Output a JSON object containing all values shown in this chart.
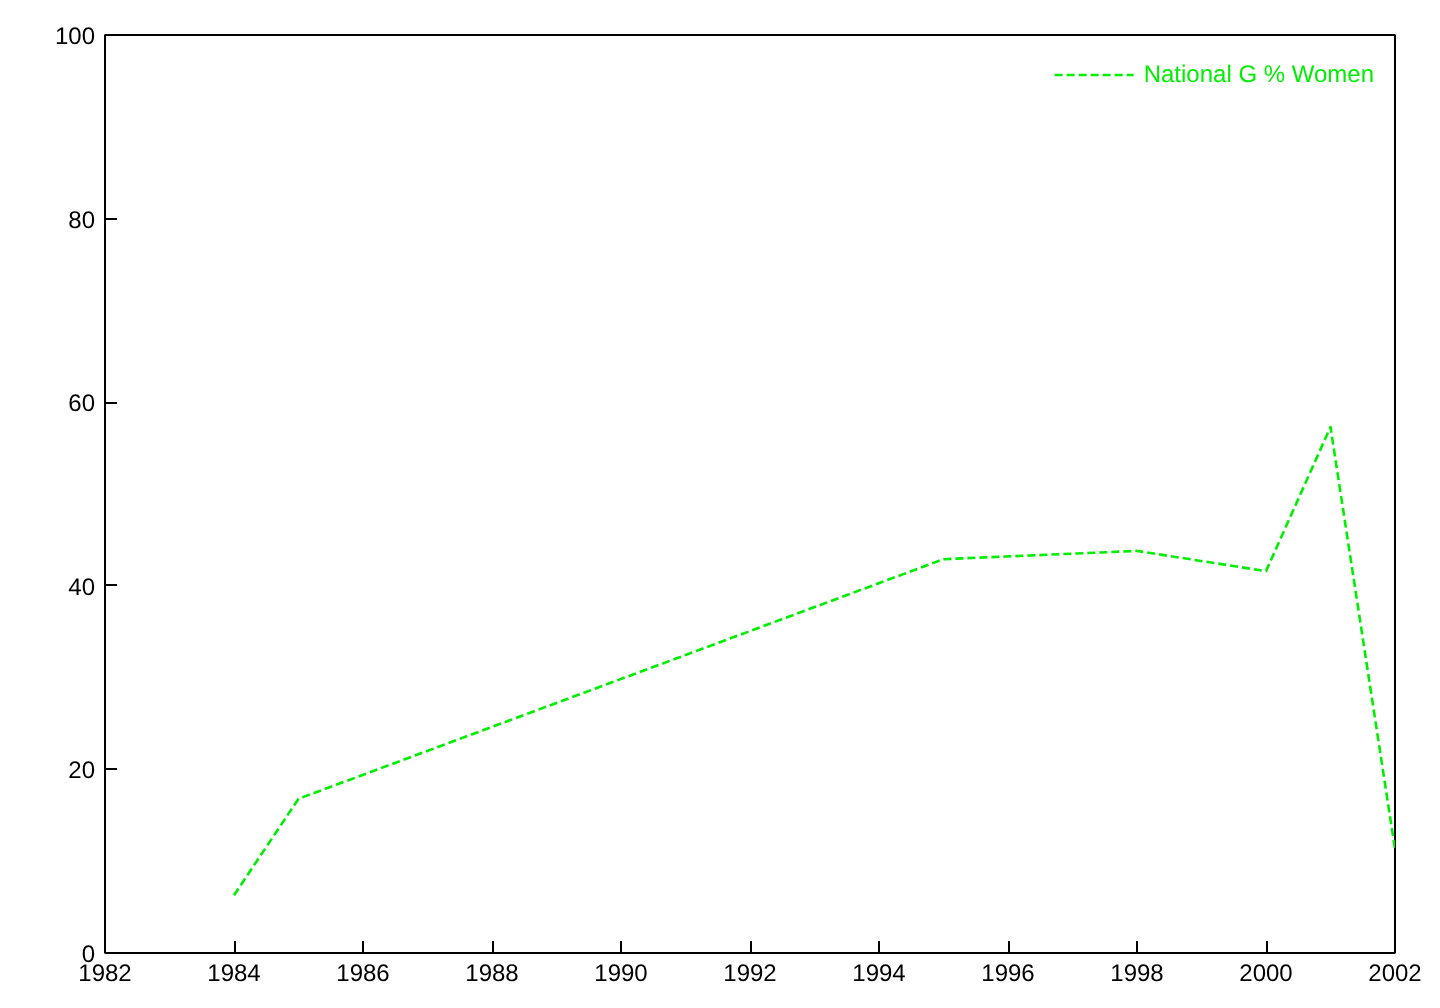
{
  "chart_data": {
    "type": "line",
    "x": [
      1984,
      1985,
      1995,
      1998,
      2000,
      2001,
      2002
    ],
    "series": [
      {
        "name": "National G % Women",
        "color": "#00ee00",
        "values": [
          6.3,
          16.8,
          42.9,
          43.8,
          41.6,
          57.3,
          11.3
        ]
      }
    ],
    "xlim": [
      1982,
      2002
    ],
    "xticks": [
      1982,
      1984,
      1986,
      1988,
      1990,
      1992,
      1994,
      1996,
      1998,
      2000,
      2002
    ],
    "ylim": [
      0,
      100
    ],
    "yticks": [
      0,
      20,
      40,
      60,
      80,
      100
    ],
    "grid": false,
    "legend": "top right",
    "line_style": "dashed",
    "marker": "none"
  }
}
